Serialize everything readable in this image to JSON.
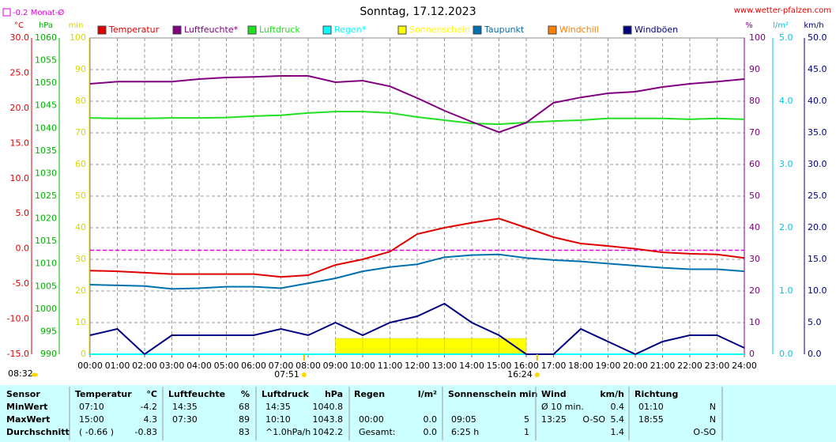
{
  "chart_data": {
    "type": "line",
    "title": "Sonntag, 17.12.2023",
    "source": "www.wetter-pfalzen.com",
    "x": [
      0,
      1,
      2,
      3,
      4,
      5,
      6,
      7,
      8,
      9,
      10,
      11,
      12,
      13,
      14,
      15,
      16,
      17,
      18,
      19,
      20,
      21,
      22,
      23,
      24
    ],
    "xlim": [
      0,
      24
    ],
    "xticks": [
      {
        "value": 0,
        "label": "00:00"
      },
      {
        "value": 1,
        "label": "01:00"
      },
      {
        "value": 2,
        "label": "02:00"
      },
      {
        "value": 3,
        "label": "03:00"
      },
      {
        "value": 4,
        "label": "04:00"
      },
      {
        "value": 5,
        "label": "05:00"
      },
      {
        "value": 6,
        "label": "06:00"
      },
      {
        "value": 7,
        "label": "07:00"
      },
      {
        "value": 8,
        "label": "08:00"
      },
      {
        "value": 9,
        "label": "09:00"
      },
      {
        "value": 10,
        "label": "10:00"
      },
      {
        "value": 11,
        "label": "11:00"
      },
      {
        "value": 12,
        "label": "12:00"
      },
      {
        "value": 13,
        "label": "13:00"
      },
      {
        "value": 14,
        "label": "14:00"
      },
      {
        "value": 15,
        "label": "15:00"
      },
      {
        "value": 16,
        "label": "16:00"
      },
      {
        "value": 17,
        "label": "17:00"
      },
      {
        "value": 18,
        "label": "18:00"
      },
      {
        "value": 19,
        "label": "19:00"
      },
      {
        "value": 20,
        "label": "20:00"
      },
      {
        "value": 21,
        "label": "21:00"
      },
      {
        "value": 22,
        "label": "22:00"
      },
      {
        "value": 23,
        "label": "23:00"
      },
      {
        "value": 24,
        "label": "24:00"
      }
    ],
    "grid": true,
    "axes": {
      "temp": {
        "label": "°C",
        "color": "#e00000",
        "lim": [
          -15,
          30
        ],
        "ticks": [
          {
            "value": -15,
            "label": "-15.0"
          },
          {
            "value": -10,
            "label": "-10.0"
          },
          {
            "value": -5,
            "label": "-5.0"
          },
          {
            "value": 0,
            "label": "0.0"
          },
          {
            "value": 5,
            "label": "5.0"
          },
          {
            "value": 10,
            "label": "10.0"
          },
          {
            "value": 15,
            "label": "15.0"
          },
          {
            "value": 20,
            "label": "20.0"
          },
          {
            "value": 25,
            "label": "25.0"
          },
          {
            "value": 30,
            "label": "30.0"
          }
        ]
      },
      "press": {
        "label": "hPa",
        "color": "#00b000",
        "lim": [
          990,
          1060
        ],
        "ticks": [
          990,
          995,
          1000,
          1005,
          1010,
          1015,
          1020,
          1025,
          1030,
          1035,
          1040,
          1045,
          1050,
          1055,
          1060
        ]
      },
      "min": {
        "label": "min",
        "color": "#d8d800",
        "lim": [
          0,
          100
        ],
        "ticks": [
          0,
          10,
          20,
          30,
          40,
          50,
          60,
          70,
          80,
          90,
          100
        ]
      },
      "hum": {
        "label": "%",
        "color": "#800080",
        "lim": [
          0,
          100
        ],
        "ticks": [
          0,
          10,
          20,
          30,
          40,
          50,
          60,
          70,
          80,
          90,
          100
        ]
      },
      "rain": {
        "label": "l/m²",
        "color": "#00c8e0",
        "lim": [
          0,
          5
        ],
        "ticks": [
          {
            "value": 0,
            "label": "0.0"
          },
          {
            "value": 1,
            "label": "1.0"
          },
          {
            "value": 2,
            "label": "2.0"
          },
          {
            "value": 3,
            "label": "3.0"
          },
          {
            "value": 4,
            "label": "4.0"
          },
          {
            "value": 5,
            "label": "5.0"
          }
        ]
      },
      "wind": {
        "label": "km/h",
        "color": "#000080",
        "lim": [
          0,
          50
        ],
        "ticks": [
          {
            "value": 0,
            "label": "0.0"
          },
          {
            "value": 5,
            "label": "5.0"
          },
          {
            "value": 10,
            "label": "10.0"
          },
          {
            "value": 15,
            "label": "15.0"
          },
          {
            "value": 20,
            "label": "20.0"
          },
          {
            "value": 25,
            "label": "25.0"
          },
          {
            "value": 30,
            "label": "30.0"
          },
          {
            "value": 35,
            "label": "35.0"
          },
          {
            "value": 40,
            "label": "40.0"
          },
          {
            "value": 45,
            "label": "45.0"
          },
          {
            "value": 50,
            "label": "50.0"
          }
        ]
      }
    },
    "series": [
      {
        "name": "Temperatur",
        "color": "#e00000",
        "axis": "temp",
        "values": [
          -3.1,
          -3.2,
          -3.4,
          -3.6,
          -3.6,
          -3.6,
          -3.6,
          -4.0,
          -3.75,
          -2.3,
          -1.5,
          -0.4,
          2.1,
          3.0,
          3.7,
          4.3,
          3.0,
          1.65,
          0.75,
          0.4,
          0,
          -0.5,
          -0.7,
          -0.8,
          -1.3
        ]
      },
      {
        "name": "Luftfeuchte*",
        "color": "#800080",
        "axis": "hum",
        "values": [
          85.5,
          86.2,
          86.2,
          86.2,
          87,
          87.5,
          87.7,
          88,
          88,
          86,
          86.5,
          84.7,
          81,
          77,
          73.5,
          70.2,
          73.2,
          79.5,
          81.2,
          82.5,
          83,
          84.5,
          85.5,
          86.2,
          87
        ]
      },
      {
        "name": "Luftdruck",
        "color": "#22e022",
        "axis": "press",
        "values": [
          1042.3,
          1042.2,
          1042.2,
          1042.3,
          1042.3,
          1042.4,
          1042.7,
          1042.9,
          1043.4,
          1043.7,
          1043.7,
          1043.4,
          1042.5,
          1041.8,
          1041.1,
          1040.9,
          1041.3,
          1041.6,
          1041.8,
          1042.2,
          1042.2,
          1042.2,
          1042.0,
          1042.2,
          1042.0
        ]
      },
      {
        "name": "Regen*",
        "color": "#00ffff",
        "axis": "rain",
        "values": [
          0,
          0,
          0,
          0,
          0,
          0,
          0,
          0,
          0,
          0,
          0,
          0,
          0,
          0,
          0,
          0,
          0,
          0,
          0,
          0,
          0,
          0,
          0,
          0,
          0
        ]
      },
      {
        "name": "Sonnenschein",
        "color": "#ffff00",
        "axis": "min",
        "bars": true,
        "values": [
          0,
          0,
          0,
          0,
          0,
          0,
          0,
          0,
          0,
          5,
          5,
          5,
          5,
          5,
          5,
          5,
          0,
          0,
          0,
          0,
          0,
          0,
          0,
          0,
          0
        ]
      },
      {
        "name": "Taupunkt",
        "color": "#0070b0",
        "axis": "temp",
        "values": [
          -5.1,
          -5.2,
          -5.3,
          -5.7,
          -5.6,
          -5.4,
          -5.4,
          -5.6,
          -4.9,
          -4.2,
          -3.2,
          -2.6,
          -2.2,
          -1.2,
          -0.9,
          -0.8,
          -1.3,
          -1.6,
          -1.8,
          -2.1,
          -2.4,
          -2.7,
          -2.9,
          -2.9,
          -3.2
        ]
      },
      {
        "name": "Windchill",
        "color": "#ff8000",
        "axis": "temp"
      },
      {
        "name": "Windböen",
        "color": "#000080",
        "axis": "wind",
        "values": [
          3,
          4,
          0,
          3,
          3,
          3,
          3,
          4,
          3,
          5,
          3,
          5,
          6,
          8,
          5,
          3,
          0,
          0,
          4,
          2,
          0,
          2,
          3,
          3,
          1
        ]
      }
    ],
    "monthly_avg": {
      "label": "-0.2 Monat-Ø",
      "value": -0.2,
      "color": "#e000e0"
    },
    "sunrise": {
      "label": "07:51",
      "x": 7.85
    },
    "sunset": {
      "label": "16:24",
      "x": 16.4
    },
    "moon": {
      "label": "08:32"
    }
  },
  "table": {
    "header": {
      "sensor": "Sensor",
      "t": "Temperatur",
      "t_unit": "°C",
      "h": "Luftfeuchte",
      "h_unit": "%",
      "p": "Luftdruck",
      "p_unit": "hPa",
      "r": "Regen",
      "r_unit": "l/m²",
      "s": "Sonnenschein min",
      "w": "Wind",
      "w_unit": "km/h",
      "d": "Richtung"
    },
    "rows": [
      {
        "label": "MinWert",
        "t_time": "07:10",
        "t": "-4.2",
        "h_time": "14:35",
        "h": "68",
        "p_time": "14:35",
        "p": "1040.8",
        "w_time": "Ø 10 min.",
        "w": "0.4",
        "d_time": "01:10",
        "d": "N"
      },
      {
        "label": "MaxWert",
        "t_time": "15:00",
        "t": "4.3",
        "h_time": "07:30",
        "h": "89",
        "p_time": "10:10",
        "p": "1043.8",
        "r_time": "00:00",
        "r": "0.0",
        "s_time": "09:05",
        "s": "5",
        "w_time": "13:25",
        "w_dir": "O-SO",
        "w": "5.4",
        "d_time": "18:55",
        "d": "N"
      },
      {
        "label": "Durchschnitt",
        "t_time": "( -0.66 )",
        "t": "-0.83",
        "h": "83",
        "p_time": "^1.0hPa/h",
        "p": "1042.2",
        "r_time": "Gesamt:",
        "r": "0.0",
        "s_time": "6:25 h",
        "s": "1",
        "w": "1.4",
        "d": "O-SO"
      }
    ]
  }
}
